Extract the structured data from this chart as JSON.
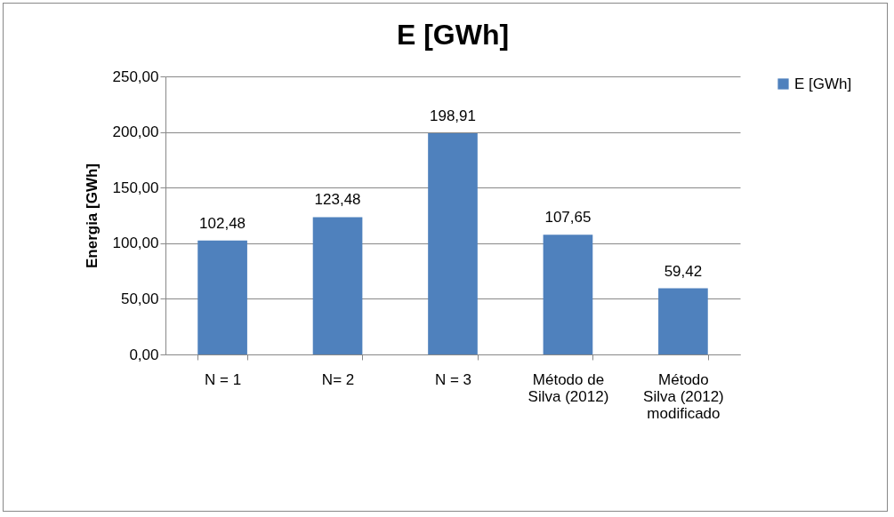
{
  "chart_data": {
    "type": "bar",
    "title": "E [GWh]",
    "ylabel": "Energia [GWh]",
    "categories": [
      "N = 1",
      "N= 2",
      "N = 3",
      "Método de\nSilva (2012)",
      "Método\nSilva (2012)\nmodificado"
    ],
    "series": [
      {
        "name": "E [GWh]",
        "color": "#4f81bd",
        "values": [
          102.48,
          123.48,
          198.91,
          107.65,
          59.42
        ],
        "value_labels": [
          "102,48",
          "123,48",
          "198,91",
          "107,65",
          "59,42"
        ]
      }
    ],
    "ylim": [
      0,
      250
    ],
    "yticks": [
      {
        "value": 0,
        "label": "0,00"
      },
      {
        "value": 50,
        "label": "50,00"
      },
      {
        "value": 100,
        "label": "100,00"
      },
      {
        "value": 150,
        "label": "150,00"
      },
      {
        "value": 200,
        "label": "200,00"
      },
      {
        "value": 250,
        "label": "250,00"
      }
    ],
    "grid": "y",
    "legend": "right"
  }
}
